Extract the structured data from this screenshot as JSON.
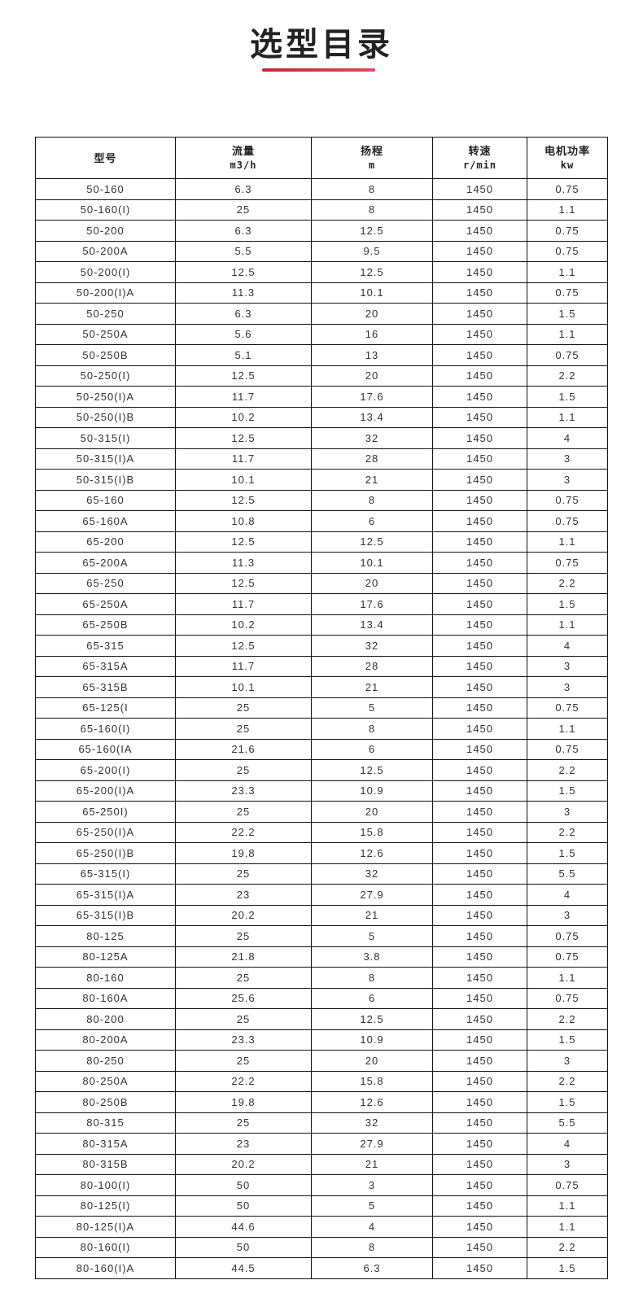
{
  "title": "选型目录",
  "accent_color": "#c8243a",
  "table": {
    "headers": [
      {
        "label": "型号",
        "unit": ""
      },
      {
        "label": "流量",
        "unit": "m3/h"
      },
      {
        "label": "扬程",
        "unit": "m"
      },
      {
        "label": "转速",
        "unit": "r/min"
      },
      {
        "label": "电机功率",
        "unit": "kw"
      }
    ],
    "rows": [
      [
        "50-160",
        "6.3",
        "8",
        "1450",
        "0.75"
      ],
      [
        "50-160(I)",
        "25",
        "8",
        "1450",
        "1.1"
      ],
      [
        "50-200",
        "6.3",
        "12.5",
        "1450",
        "0.75"
      ],
      [
        "50-200A",
        "5.5",
        "9.5",
        "1450",
        "0.75"
      ],
      [
        "50-200(I)",
        "12.5",
        "12.5",
        "1450",
        "1.1"
      ],
      [
        "50-200(I)A",
        "11.3",
        "10.1",
        "1450",
        "0.75"
      ],
      [
        "50-250",
        "6.3",
        "20",
        "1450",
        "1.5"
      ],
      [
        "50-250A",
        "5.6",
        "16",
        "1450",
        "1.1"
      ],
      [
        "50-250B",
        "5.1",
        "13",
        "1450",
        "0.75"
      ],
      [
        "50-250(I)",
        "12.5",
        "20",
        "1450",
        "2.2"
      ],
      [
        "50-250(I)A",
        "11.7",
        "17.6",
        "1450",
        "1.5"
      ],
      [
        "50-250(I)B",
        "10.2",
        "13.4",
        "1450",
        "1.1"
      ],
      [
        "50-315(I)",
        "12.5",
        "32",
        "1450",
        "4"
      ],
      [
        "50-315(I)A",
        "11.7",
        "28",
        "1450",
        "3"
      ],
      [
        "50-315(I)B",
        "10.1",
        "21",
        "1450",
        "3"
      ],
      [
        "65-160",
        "12.5",
        "8",
        "1450",
        "0.75"
      ],
      [
        "65-160A",
        "10.8",
        "6",
        "1450",
        "0.75"
      ],
      [
        "65-200",
        "12.5",
        "12.5",
        "1450",
        "1.1"
      ],
      [
        "65-200A",
        "11.3",
        "10.1",
        "1450",
        "0.75"
      ],
      [
        "65-250",
        "12.5",
        "20",
        "1450",
        "2.2"
      ],
      [
        "65-250A",
        "11.7",
        "17.6",
        "1450",
        "1.5"
      ],
      [
        "65-250B",
        "10.2",
        "13.4",
        "1450",
        "1.1"
      ],
      [
        "65-315",
        "12.5",
        "32",
        "1450",
        "4"
      ],
      [
        "65-315A",
        "11.7",
        "28",
        "1450",
        "3"
      ],
      [
        "65-315B",
        "10.1",
        "21",
        "1450",
        "3"
      ],
      [
        "65-125(I",
        "25",
        "5",
        "1450",
        "0.75"
      ],
      [
        "65-160(I)",
        "25",
        "8",
        "1450",
        "1.1"
      ],
      [
        "65-160(IA",
        "21.6",
        "6",
        "1450",
        "0.75"
      ],
      [
        "65-200(I)",
        "25",
        "12.5",
        "1450",
        "2.2"
      ],
      [
        "65-200(I)A",
        "23.3",
        "10.9",
        "1450",
        "1.5"
      ],
      [
        "65-250I)",
        "25",
        "20",
        "1450",
        "3"
      ],
      [
        "65-250(I)A",
        "22.2",
        "15.8",
        "1450",
        "2.2"
      ],
      [
        "65-250(I)B",
        "19.8",
        "12.6",
        "1450",
        "1.5"
      ],
      [
        "65-315(I)",
        "25",
        "32",
        "1450",
        "5.5"
      ],
      [
        "65-315(I)A",
        "23",
        "27.9",
        "1450",
        "4"
      ],
      [
        "65-315(I)B",
        "20.2",
        "21",
        "1450",
        "3"
      ],
      [
        "80-125",
        "25",
        "5",
        "1450",
        "0.75"
      ],
      [
        "80-125A",
        "21.8",
        "3.8",
        "1450",
        "0.75"
      ],
      [
        "80-160",
        "25",
        "8",
        "1450",
        "1.1"
      ],
      [
        "80-160A",
        "25.6",
        "6",
        "1450",
        "0.75"
      ],
      [
        "80-200",
        "25",
        "12.5",
        "1450",
        "2.2"
      ],
      [
        "80-200A",
        "23.3",
        "10.9",
        "1450",
        "1.5"
      ],
      [
        "80-250",
        "25",
        "20",
        "1450",
        "3"
      ],
      [
        "80-250A",
        "22.2",
        "15.8",
        "1450",
        "2.2"
      ],
      [
        "80-250B",
        "19.8",
        "12.6",
        "1450",
        "1.5"
      ],
      [
        "80-315",
        "25",
        "32",
        "1450",
        "5.5"
      ],
      [
        "80-315A",
        "23",
        "27.9",
        "1450",
        "4"
      ],
      [
        "80-315B",
        "20.2",
        "21",
        "1450",
        "3"
      ],
      [
        "80-100(I)",
        "50",
        "3",
        "1450",
        "0.75"
      ],
      [
        "80-125(I)",
        "50",
        "5",
        "1450",
        "1.1"
      ],
      [
        "80-125(I)A",
        "44.6",
        "4",
        "1450",
        "1.1"
      ],
      [
        "80-160(I)",
        "50",
        "8",
        "1450",
        "2.2"
      ],
      [
        "80-160(I)A",
        "44.5",
        "6.3",
        "1450",
        "1.5"
      ]
    ]
  }
}
